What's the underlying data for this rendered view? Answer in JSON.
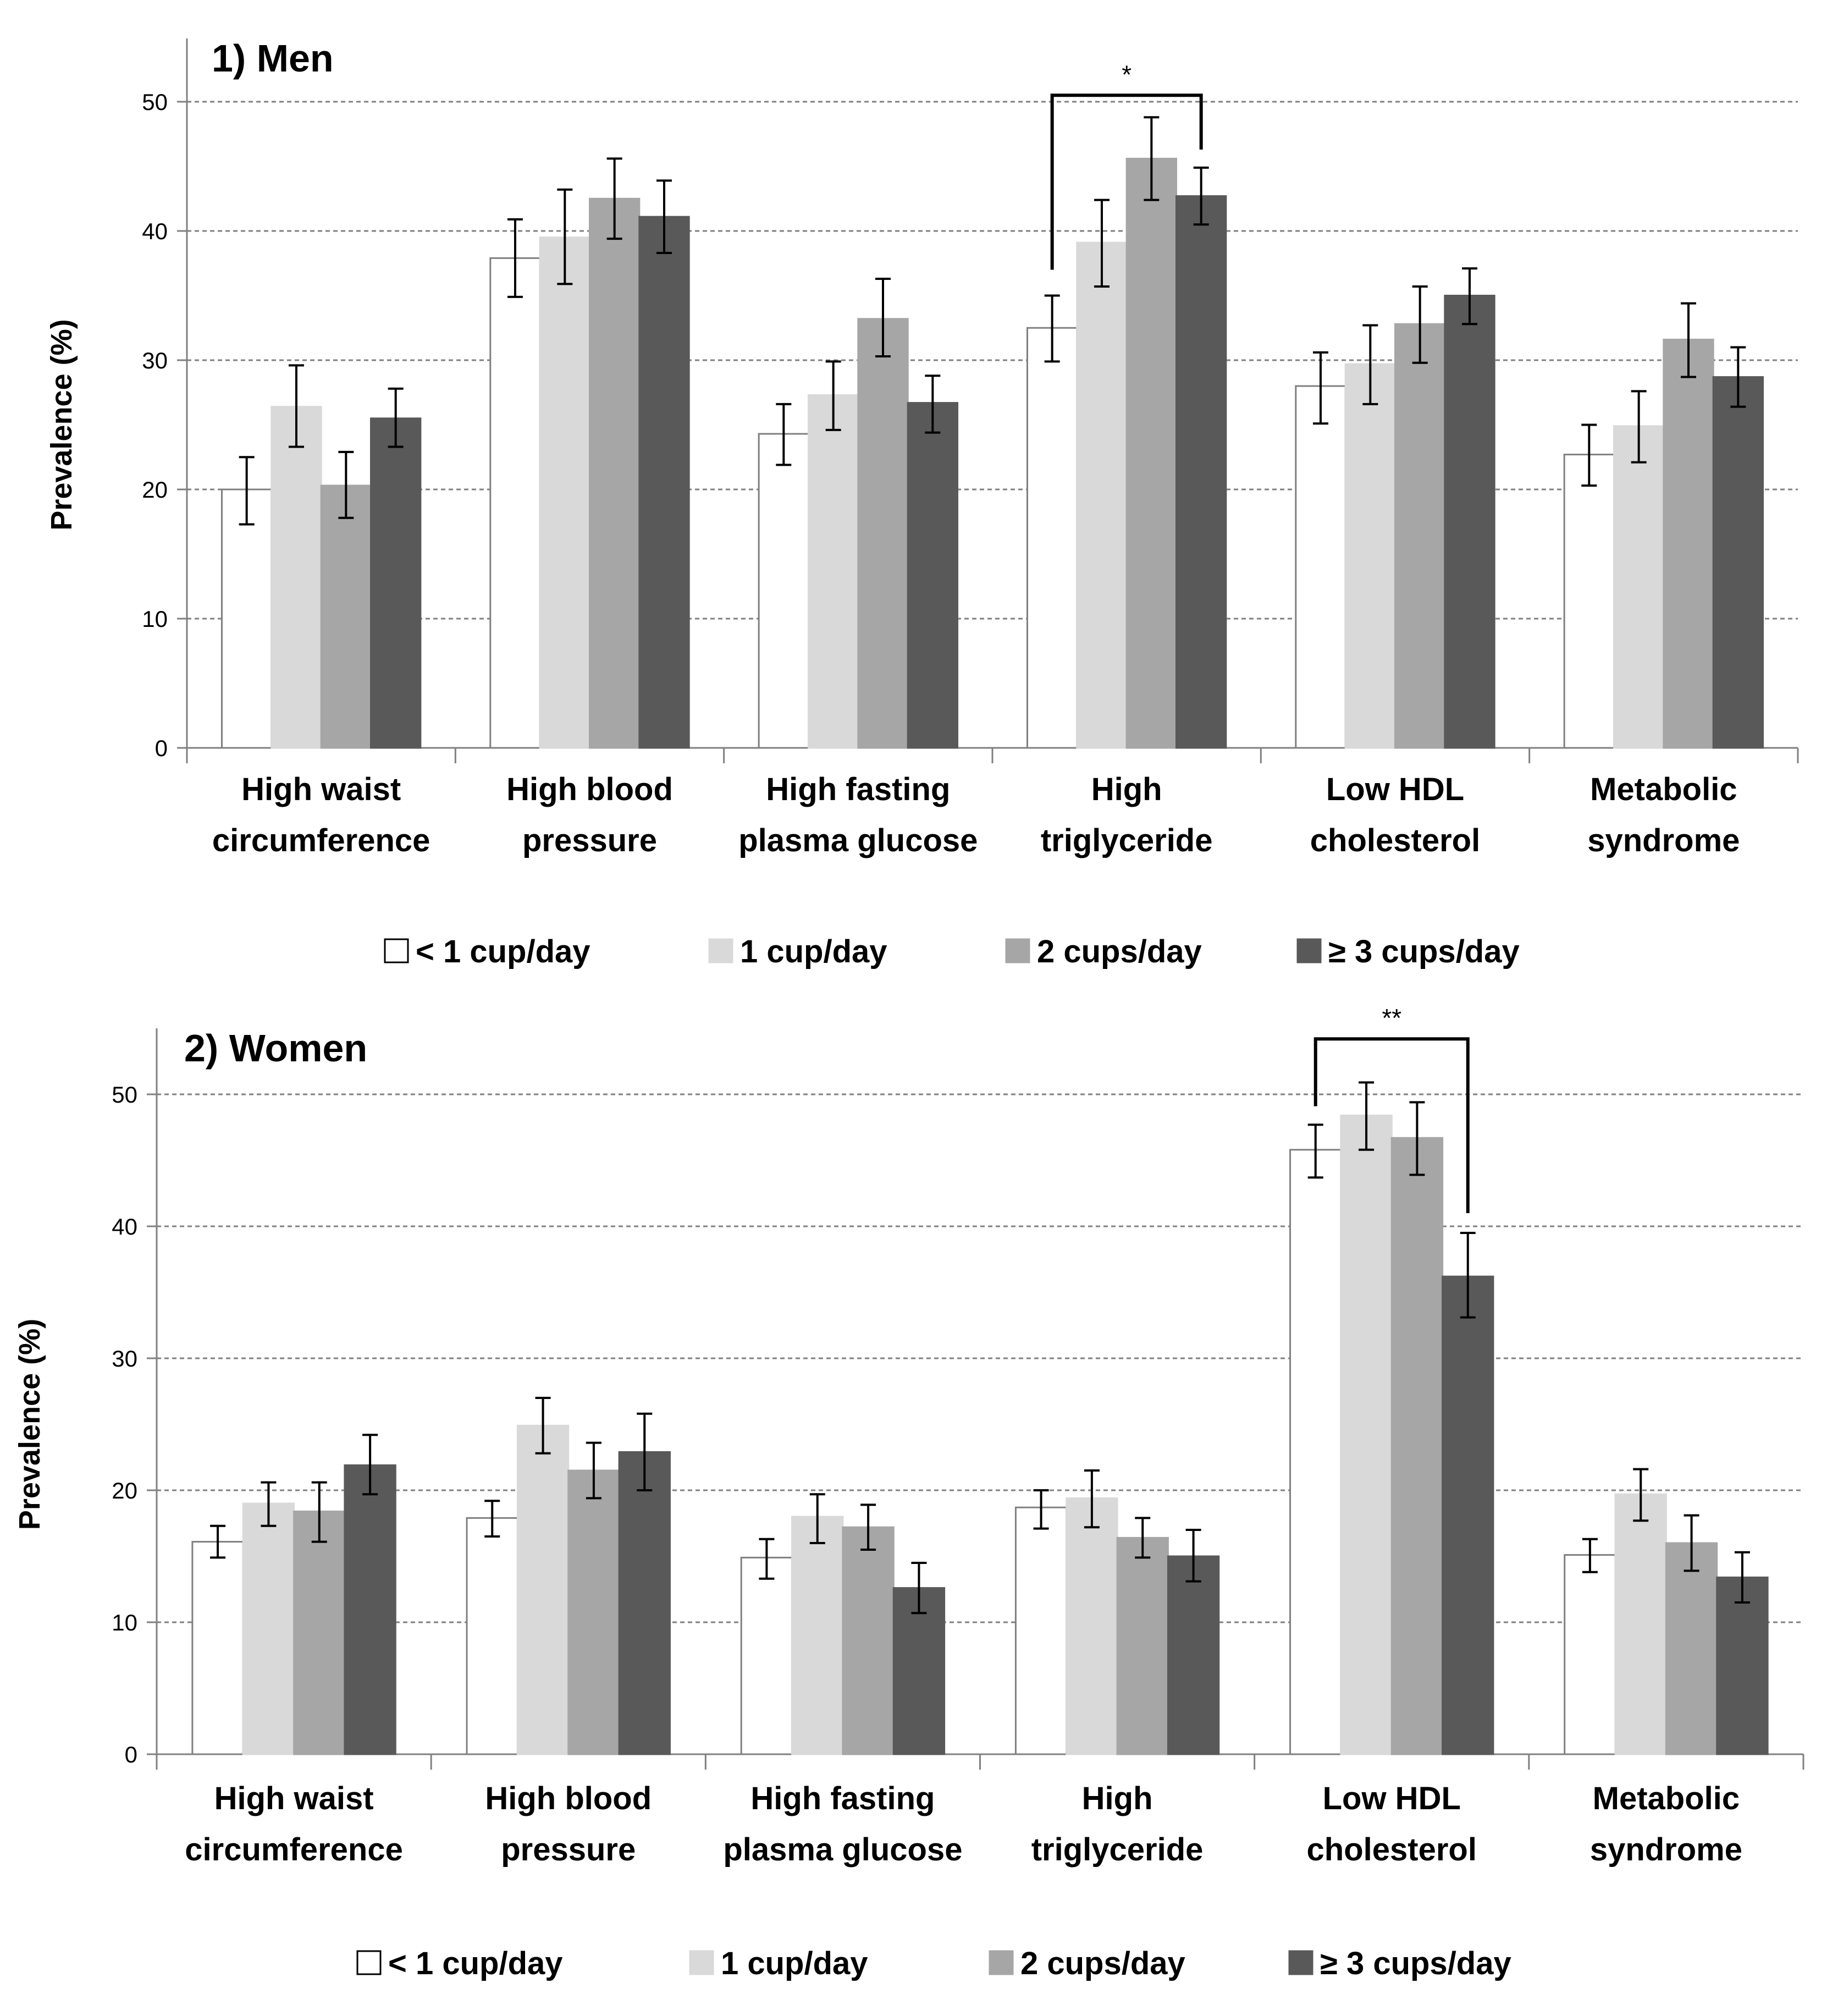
{
  "chart_data": [
    {
      "type": "bar",
      "title": "1) Men",
      "ylabel": "Prevalence (%)",
      "ylim": [
        0,
        50
      ],
      "yticks": [
        0,
        10,
        20,
        30,
        40,
        50
      ],
      "grid": true,
      "legend_position": "bottom",
      "categories": [
        [
          "High waist",
          "circumference"
        ],
        [
          "High blood",
          "pressure"
        ],
        [
          "High fasting",
          "plasma glucose"
        ],
        [
          "High",
          "triglyceride"
        ],
        [
          "Low HDL",
          "cholesterol"
        ],
        [
          "Metabolic",
          "syndrome"
        ]
      ],
      "series": [
        {
          "name": "< 1 cup/day",
          "color": "#ffffff",
          "values": [
            20.0,
            37.9,
            24.3,
            32.5,
            28.0,
            22.7
          ],
          "err_low": [
            17.3,
            34.9,
            21.9,
            29.9,
            25.1,
            20.3
          ],
          "err_high": [
            22.5,
            40.9,
            26.6,
            35.0,
            30.6,
            25.0
          ]
        },
        {
          "name": "1 cup/day",
          "color": "#d9d9d9",
          "values": [
            26.4,
            39.5,
            27.3,
            39.1,
            29.7,
            24.9
          ],
          "err_low": [
            23.3,
            35.9,
            24.6,
            35.7,
            26.6,
            22.1
          ],
          "err_high": [
            29.6,
            43.2,
            29.9,
            42.4,
            32.7,
            27.6
          ]
        },
        {
          "name": "2 cups/day",
          "color": "#a6a6a6",
          "values": [
            20.3,
            42.5,
            33.2,
            45.6,
            32.8,
            31.6
          ],
          "err_low": [
            17.8,
            39.4,
            30.3,
            42.4,
            29.8,
            28.7
          ],
          "err_high": [
            22.9,
            45.6,
            36.3,
            48.8,
            35.7,
            34.4
          ]
        },
        {
          "name": "≥ 3 cups/day",
          "color": "#595959",
          "values": [
            25.5,
            41.1,
            26.7,
            42.7,
            35.0,
            28.7
          ],
          "err_low": [
            23.3,
            38.3,
            24.4,
            40.5,
            32.8,
            26.4
          ],
          "err_high": [
            27.8,
            43.9,
            28.8,
            44.9,
            37.1,
            31.0
          ]
        }
      ],
      "annotations": [
        {
          "text": "*",
          "category_index": 3,
          "from_series": 0,
          "to_series": 3,
          "bracket_top": 50.5,
          "left_end": 37.0,
          "right_end": 46.3
        }
      ]
    },
    {
      "type": "bar",
      "title": "2) Women",
      "ylabel": "Prevalence (%)",
      "ylim": [
        0,
        50
      ],
      "yticks": [
        0,
        10,
        20,
        30,
        40,
        50
      ],
      "grid": true,
      "legend_position": "bottom",
      "categories": [
        [
          "High waist",
          "circumference"
        ],
        [
          "High blood",
          "pressure"
        ],
        [
          "High fasting",
          "plasma glucose"
        ],
        [
          "High",
          "triglyceride"
        ],
        [
          "Low HDL",
          "cholesterol"
        ],
        [
          "Metabolic",
          "syndrome"
        ]
      ],
      "series": [
        {
          "name": "< 1 cup/day",
          "color": "#ffffff",
          "values": [
            16.1,
            17.9,
            14.9,
            18.7,
            45.8,
            15.1
          ],
          "err_low": [
            14.9,
            16.5,
            13.3,
            17.1,
            43.7,
            13.8
          ],
          "err_high": [
            17.3,
            19.2,
            16.3,
            20.0,
            47.7,
            16.3
          ]
        },
        {
          "name": "1 cup/day",
          "color": "#d9d9d9",
          "values": [
            19.0,
            24.9,
            18.0,
            19.4,
            48.4,
            19.7
          ],
          "err_low": [
            17.3,
            22.8,
            16.0,
            17.2,
            45.8,
            17.7
          ],
          "err_high": [
            20.6,
            27.0,
            19.7,
            21.5,
            50.9,
            21.6
          ]
        },
        {
          "name": "2 cups/day",
          "color": "#a6a6a6",
          "values": [
            18.4,
            21.5,
            17.2,
            16.4,
            46.7,
            16.0
          ],
          "err_low": [
            16.1,
            19.4,
            15.5,
            14.9,
            43.9,
            13.9
          ],
          "err_high": [
            20.6,
            23.6,
            18.9,
            17.9,
            49.4,
            18.1
          ]
        },
        {
          "name": "≥ 3 cups/day",
          "color": "#595959",
          "values": [
            21.9,
            22.9,
            12.6,
            15.0,
            36.2,
            13.4
          ],
          "err_low": [
            19.7,
            20.0,
            10.7,
            13.1,
            33.1,
            11.5
          ],
          "err_high": [
            24.2,
            25.8,
            14.5,
            17.0,
            39.5,
            15.3
          ]
        }
      ],
      "annotations": [
        {
          "text": "**",
          "category_index": 4,
          "from_series": 0,
          "to_series": 3,
          "bracket_top": 54.2,
          "left_end": 49.1,
          "right_end": 41.0
        }
      ]
    }
  ]
}
